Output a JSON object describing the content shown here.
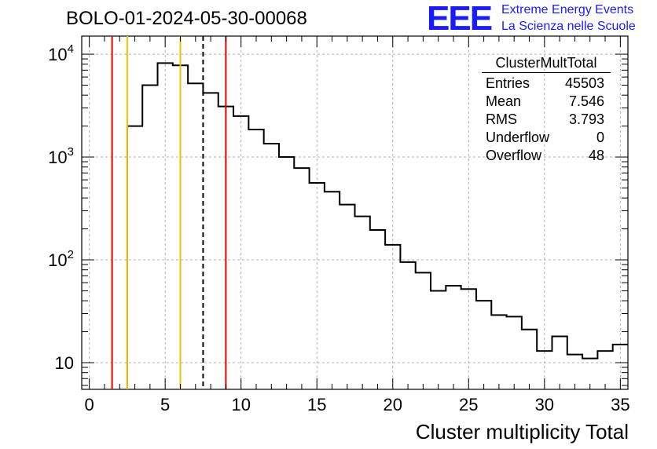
{
  "page_title": "BOLO-01-2024-05-30-00068",
  "logo": {
    "mark": "EEE",
    "line1": "Extreme Energy Events",
    "line2": "La Scienza nelle Scuole",
    "color": "#1a1aff"
  },
  "stats": {
    "title": "ClusterMultTotal",
    "rows": [
      {
        "label": "Entries",
        "value": "45503"
      },
      {
        "label": "Mean",
        "value": "7.546"
      },
      {
        "label": "RMS",
        "value": "3.793"
      },
      {
        "label": "Underflow",
        "value": "0"
      },
      {
        "label": "Overflow",
        "value": "48"
      }
    ]
  },
  "chart_data": {
    "type": "histogram",
    "xlabel": "Cluster multiplicity Total",
    "ylabel": "",
    "xlim": [
      -0.5,
      35.5
    ],
    "ylim": [
      5.5,
      15000
    ],
    "yscale": "log",
    "grid": true,
    "x_ticks": [
      0,
      5,
      10,
      15,
      20,
      25,
      30,
      35
    ],
    "y_tick_labels": [
      {
        "value": 10,
        "base": "10",
        "exp": ""
      },
      {
        "value": 100,
        "base": "10",
        "exp": "2"
      },
      {
        "value": 1000,
        "base": "10",
        "exp": "3"
      },
      {
        "value": 10000,
        "base": "10",
        "exp": "4"
      }
    ],
    "bins": {
      "edges": [
        -0.5,
        0.5,
        1.5,
        2.5,
        3.5,
        4.5,
        5.5,
        6.5,
        7.5,
        8.5,
        9.5,
        10.5,
        11.5,
        12.5,
        13.5,
        14.5,
        15.5,
        16.5,
        17.5,
        18.5,
        19.5,
        20.5,
        21.5,
        22.5,
        23.5,
        24.5,
        25.5,
        26.5,
        27.5,
        28.5,
        29.5,
        30.5,
        31.5,
        32.5,
        33.5,
        34.5,
        35.5
      ],
      "counts": [
        0,
        0,
        0,
        2000,
        5000,
        8200,
        7800,
        5200,
        4200,
        3100,
        2500,
        1850,
        1350,
        1000,
        780,
        560,
        460,
        345,
        265,
        195,
        140,
        95,
        75,
        50,
        56,
        52,
        40,
        29,
        28,
        21,
        13,
        18,
        12,
        11,
        13,
        15
      ]
    },
    "vertical_lines": [
      {
        "x": 1.5,
        "color": "#e00000",
        "style": "solid"
      },
      {
        "x": 2.5,
        "color": "#f2c200",
        "style": "solid"
      },
      {
        "x": 6.0,
        "color": "#f2c200",
        "style": "solid"
      },
      {
        "x": 7.5,
        "color": "#000000",
        "style": "dashed"
      },
      {
        "x": 9.0,
        "color": "#e00000",
        "style": "solid"
      }
    ]
  }
}
